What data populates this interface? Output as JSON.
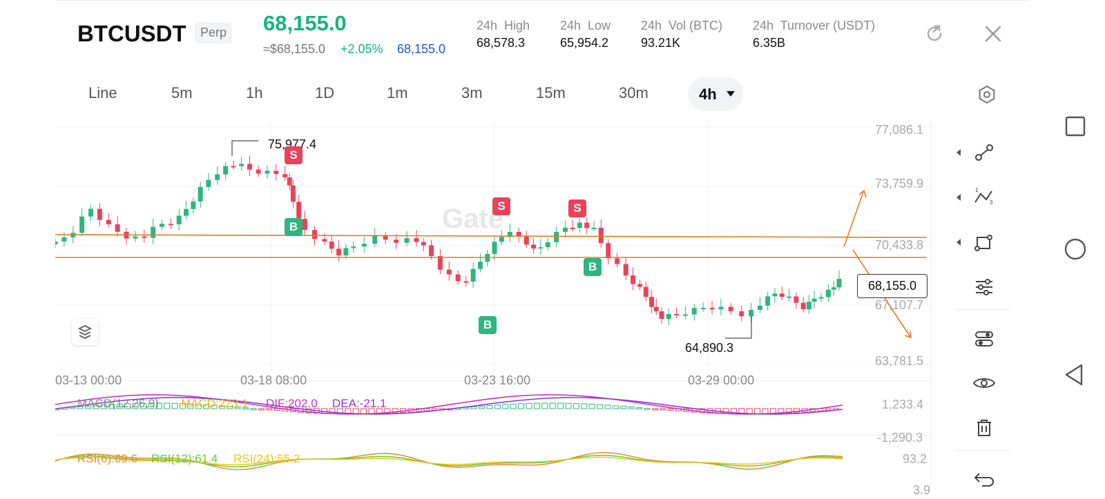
{
  "header": {
    "symbol": "BTCUSDT",
    "badge": "Perp",
    "last_price": "68,155.0",
    "approx_price": "≈$68,155.0",
    "change_pct": "+2.05%",
    "mark_price": "68,155.0",
    "stats": [
      {
        "label": "24h  High",
        "value": "68,578.3"
      },
      {
        "label": "24h  Low",
        "value": "65,954.2"
      },
      {
        "label": "24h  Vol (BTC)",
        "value": "93.21K"
      },
      {
        "label": "24h  Turnover (USDT)",
        "value": "6.35B"
      }
    ]
  },
  "timeframes": [
    "Line",
    "5m",
    "1h",
    "1D",
    "1m",
    "3m",
    "15m",
    "30m"
  ],
  "active_timeframe": "4h",
  "chart": {
    "y_labels": [
      "77,086.1",
      "73,759.9",
      "70,433.8",
      "67,107.7",
      "63,781.5"
    ],
    "x_labels": [
      "03-13 00:00",
      "03-18 08:00",
      "03-23 16:00",
      "03-29 00:00"
    ],
    "current_price": "68,155.0",
    "high_label": "75,977.4",
    "low_label": "64,890.3",
    "markers": [
      {
        "type": "S",
        "label": "S"
      },
      {
        "type": "B",
        "label": "B"
      },
      {
        "type": "S",
        "label": "S"
      },
      {
        "type": "B",
        "label": "B"
      },
      {
        "type": "S",
        "label": "S"
      },
      {
        "type": "B",
        "label": "B"
      }
    ],
    "watermark": "Gate"
  },
  "macd": {
    "name": "MACD(12,26,9)",
    "macd": "MACD:223.1",
    "dif": "DIF:202.0",
    "dea": "DEA:-21.1",
    "y_top": "1,233.4",
    "y_bottom": "-1,290.3"
  },
  "rsi": {
    "rsi6": "RSI(6):69.6",
    "rsi12": "RSI(12):61.4",
    "rsi24": "RSI(24):55.2",
    "y_top": "93.2",
    "y_bottom": "3.9"
  },
  "colors": {
    "up": "#2fb57f",
    "down": "#e8435b",
    "price_green": "#15b47a",
    "mark_blue": "#2255cc",
    "line_orange": "#e07b1f",
    "macd_yellow": "#f2b51a",
    "dif_magenta": "#c630c6",
    "dea_purple": "#8a3bd6",
    "rsi6": "#e38a2e",
    "rsi12": "#5fcf36",
    "rsi24": "#f0c419"
  },
  "icons": {
    "header": [
      "refresh-icon",
      "close-icon"
    ],
    "tabs_settings": "hexagon-settings-icon",
    "tools": [
      "line-tool-icon",
      "fib-tool-icon",
      "shape-tool-icon",
      "adjust-icon",
      "indicator-icon",
      "eye-icon",
      "trash-icon",
      "undo-icon"
    ],
    "nav": [
      "recents-icon",
      "home-icon",
      "back-icon"
    ]
  }
}
